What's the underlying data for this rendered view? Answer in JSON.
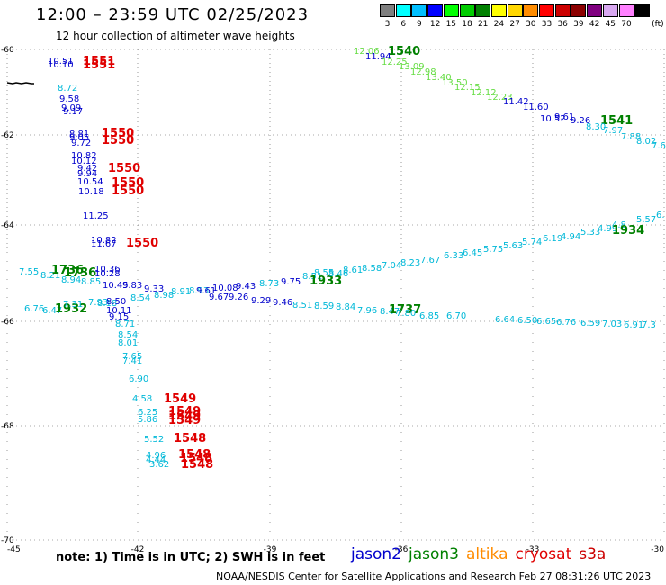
{
  "header": {
    "title": "12:00 – 23:59 UTC 02/25/2023",
    "subtitle": "12 hour collection of altimeter wave heights"
  },
  "scale": {
    "unit": "(ft)",
    "bins": [
      {
        "label": "3",
        "color": "#7f7f7f"
      },
      {
        "label": "6",
        "color": "#00ffff"
      },
      {
        "label": "9",
        "color": "#00bfff"
      },
      {
        "label": "12",
        "color": "#0000ff"
      },
      {
        "label": "15",
        "color": "#00ff00"
      },
      {
        "label": "18",
        "color": "#00cc00"
      },
      {
        "label": "21",
        "color": "#008000"
      },
      {
        "label": "24",
        "color": "#ffff00"
      },
      {
        "label": "27",
        "color": "#ffd700"
      },
      {
        "label": "30",
        "color": "#ff8c00"
      },
      {
        "label": "33",
        "color": "#ff0000"
      },
      {
        "label": "36",
        "color": "#cc0000"
      },
      {
        "label": "39",
        "color": "#8b0000"
      },
      {
        "label": "42",
        "color": "#800080"
      },
      {
        "label": "45",
        "color": "#d8a8f0"
      },
      {
        "label": "70",
        "color": "#ff80ff"
      },
      {
        "label": "",
        "color": "#000000"
      }
    ]
  },
  "axes": {
    "lon_labels": [
      "-45",
      "-42",
      "-39",
      "-36",
      "-33",
      "-30"
    ],
    "lat_labels": [
      "-60",
      "-62",
      "-64",
      "-66",
      "-68",
      "-70"
    ]
  },
  "note": "note:  1) Time is in UTC; 2) SWH is in feet",
  "legend": [
    {
      "name": "jason2",
      "color": "#0000cc"
    },
    {
      "name": "jason3",
      "color": "#008000"
    },
    {
      "name": "altika",
      "color": "#ff8c00"
    },
    {
      "name": "cryosat",
      "color": "#e00000"
    },
    {
      "name": "s3a",
      "color": "#cc0000"
    }
  ],
  "credit": "NOAA/NESDIS Center for Satellite Applications and Research    Feb 27 08:31:26 UTC 2023",
  "palette": {
    "blue": "#0000cc",
    "cyan": "#00b8d8",
    "green": "#66dd44",
    "dgreen": "#008000",
    "red": "#e00000"
  },
  "observations": [
    {
      "t": "10.51",
      "c": "blue"
    },
    {
      "t": "10.10",
      "c": "blue"
    },
    {
      "t": "1551",
      "c": "red"
    },
    {
      "t": "1551",
      "c": "red"
    },
    {
      "t": "8.72",
      "c": "cyan"
    },
    {
      "t": "9.58",
      "c": "blue"
    },
    {
      "t": "9.09",
      "c": "blue"
    },
    {
      "t": "9.17",
      "c": "blue"
    },
    {
      "t": "8.81",
      "c": "blue"
    },
    {
      "t": "9.05",
      "c": "blue"
    },
    {
      "t": "9.72",
      "c": "blue"
    },
    {
      "t": "1550",
      "c": "red"
    },
    {
      "t": "1550",
      "c": "red"
    },
    {
      "t": "10.82",
      "c": "blue"
    },
    {
      "t": "10.12",
      "c": "blue"
    },
    {
      "t": "9.42",
      "c": "blue"
    },
    {
      "t": "9.94",
      "c": "blue"
    },
    {
      "t": "10.54",
      "c": "blue"
    },
    {
      "t": "10.18",
      "c": "blue"
    },
    {
      "t": "1550",
      "c": "red"
    },
    {
      "t": "1550",
      "c": "red"
    },
    {
      "t": "1550",
      "c": "red"
    },
    {
      "t": "11.25",
      "c": "blue"
    },
    {
      "t": "10.82",
      "c": "blue"
    },
    {
      "t": "11.67",
      "c": "blue"
    },
    {
      "t": "1550",
      "c": "red"
    },
    {
      "t": "7.55",
      "c": "cyan"
    },
    {
      "t": "8.21",
      "c": "cyan"
    },
    {
      "t": "1736",
      "c": "dgreen"
    },
    {
      "t": "1736",
      "c": "dgreen"
    },
    {
      "t": "10.36",
      "c": "blue"
    },
    {
      "t": "10.28",
      "c": "blue"
    },
    {
      "t": "8.94",
      "c": "cyan"
    },
    {
      "t": "8.85",
      "c": "cyan"
    },
    {
      "t": "10.45",
      "c": "blue"
    },
    {
      "t": "9.83",
      "c": "blue"
    },
    {
      "t": "9.33",
      "c": "blue"
    },
    {
      "t": "6.76",
      "c": "cyan"
    },
    {
      "t": "6.47",
      "c": "cyan"
    },
    {
      "t": "1932",
      "c": "dgreen"
    },
    {
      "t": "7.31",
      "c": "cyan"
    },
    {
      "t": "7.93",
      "c": "cyan"
    },
    {
      "t": "8.18",
      "c": "cyan"
    },
    {
      "t": "8.50",
      "c": "blue"
    },
    {
      "t": "10.11",
      "c": "blue"
    },
    {
      "t": "9.15",
      "c": "blue"
    },
    {
      "t": "8.71",
      "c": "cyan"
    },
    {
      "t": "8.54",
      "c": "cyan"
    },
    {
      "t": "8.98",
      "c": "cyan"
    },
    {
      "t": "8.91",
      "c": "cyan"
    },
    {
      "t": "8.93",
      "c": "cyan"
    },
    {
      "t": "9.61",
      "c": "blue"
    },
    {
      "t": "10.08",
      "c": "blue"
    },
    {
      "t": "9.43",
      "c": "blue"
    },
    {
      "t": "9.67",
      "c": "blue"
    },
    {
      "t": "9.26",
      "c": "blue"
    },
    {
      "t": "9.29",
      "c": "blue"
    },
    {
      "t": "9.46",
      "c": "blue"
    },
    {
      "t": "8.73",
      "c": "cyan"
    },
    {
      "t": "9.75",
      "c": "blue"
    },
    {
      "t": "8.54",
      "c": "cyan"
    },
    {
      "t": "8.01",
      "c": "cyan"
    },
    {
      "t": "7.65",
      "c": "cyan"
    },
    {
      "t": "7.41",
      "c": "cyan"
    },
    {
      "t": "6.90",
      "c": "cyan"
    },
    {
      "t": "4.58",
      "c": "cyan"
    },
    {
      "t": "6.25",
      "c": "cyan"
    },
    {
      "t": "5.86",
      "c": "cyan"
    },
    {
      "t": "1549",
      "c": "red"
    },
    {
      "t": "1549",
      "c": "red"
    },
    {
      "t": "1549",
      "c": "red"
    },
    {
      "t": "1549",
      "c": "red"
    },
    {
      "t": "5.52",
      "c": "cyan"
    },
    {
      "t": "1548",
      "c": "red"
    },
    {
      "t": "4.96",
      "c": "cyan"
    },
    {
      "t": "4.44",
      "c": "cyan"
    },
    {
      "t": "3.62",
      "c": "cyan"
    },
    {
      "t": "1548",
      "c": "red"
    },
    {
      "t": "1548",
      "c": "red"
    },
    {
      "t": "1548",
      "c": "red"
    },
    {
      "t": "12.06",
      "c": "green"
    },
    {
      "t": "1540",
      "c": "dgreen"
    },
    {
      "t": "11.94",
      "c": "blue"
    },
    {
      "t": "12.25",
      "c": "green"
    },
    {
      "t": "13.09",
      "c": "green"
    },
    {
      "t": "12.98",
      "c": "green"
    },
    {
      "t": "13.40",
      "c": "green"
    },
    {
      "t": "13.50",
      "c": "green"
    },
    {
      "t": "12.15",
      "c": "green"
    },
    {
      "t": "12.12",
      "c": "green"
    },
    {
      "t": "12.23",
      "c": "green"
    },
    {
      "t": "11.42",
      "c": "blue"
    },
    {
      "t": "11.60",
      "c": "blue"
    },
    {
      "t": "10.52",
      "c": "blue"
    },
    {
      "t": "9.61",
      "c": "blue"
    },
    {
      "t": "9.26",
      "c": "blue"
    },
    {
      "t": "1541",
      "c": "dgreen"
    },
    {
      "t": "8.30",
      "c": "cyan"
    },
    {
      "t": "7.97",
      "c": "cyan"
    },
    {
      "t": "7.88",
      "c": "cyan"
    },
    {
      "t": "8.02",
      "c": "cyan"
    },
    {
      "t": "7.6",
      "c": "cyan"
    },
    {
      "t": "8.51",
      "c": "cyan"
    },
    {
      "t": "8.55",
      "c": "cyan"
    },
    {
      "t": "1933",
      "c": "dgreen"
    },
    {
      "t": "8.46",
      "c": "cyan"
    },
    {
      "t": "8.61",
      "c": "cyan"
    },
    {
      "t": "8.58",
      "c": "cyan"
    },
    {
      "t": "7.04",
      "c": "cyan"
    },
    {
      "t": "8.23",
      "c": "cyan"
    },
    {
      "t": "7.67",
      "c": "cyan"
    },
    {
      "t": "6.33",
      "c": "cyan"
    },
    {
      "t": "6.45",
      "c": "cyan"
    },
    {
      "t": "5.75",
      "c": "cyan"
    },
    {
      "t": "5.63",
      "c": "cyan"
    },
    {
      "t": "5.74",
      "c": "cyan"
    },
    {
      "t": "6.19",
      "c": "cyan"
    },
    {
      "t": "4.94",
      "c": "cyan"
    },
    {
      "t": "5.33",
      "c": "cyan"
    },
    {
      "t": "4.99",
      "c": "cyan"
    },
    {
      "t": "4.8",
      "c": "cyan"
    },
    {
      "t": "1934",
      "c": "dgreen"
    },
    {
      "t": "5.57",
      "c": "cyan"
    },
    {
      "t": "6.",
      "c": "cyan"
    },
    {
      "t": "8.51",
      "c": "cyan"
    },
    {
      "t": "8.59",
      "c": "cyan"
    },
    {
      "t": "8.84",
      "c": "cyan"
    },
    {
      "t": "7.96",
      "c": "cyan"
    },
    {
      "t": "8.47",
      "c": "cyan"
    },
    {
      "t": "1737",
      "c": "dgreen"
    },
    {
      "t": "7.80",
      "c": "cyan"
    },
    {
      "t": "6.85",
      "c": "cyan"
    },
    {
      "t": "6.70",
      "c": "cyan"
    },
    {
      "t": "6.64",
      "c": "cyan"
    },
    {
      "t": "6.50",
      "c": "cyan"
    },
    {
      "t": "6.65",
      "c": "cyan"
    },
    {
      "t": "6.76",
      "c": "cyan"
    },
    {
      "t": "6.59",
      "c": "cyan"
    },
    {
      "t": "7.03",
      "c": "cyan"
    },
    {
      "t": "6.91",
      "c": "cyan"
    },
    {
      "t": "7.3",
      "c": "cyan"
    }
  ]
}
